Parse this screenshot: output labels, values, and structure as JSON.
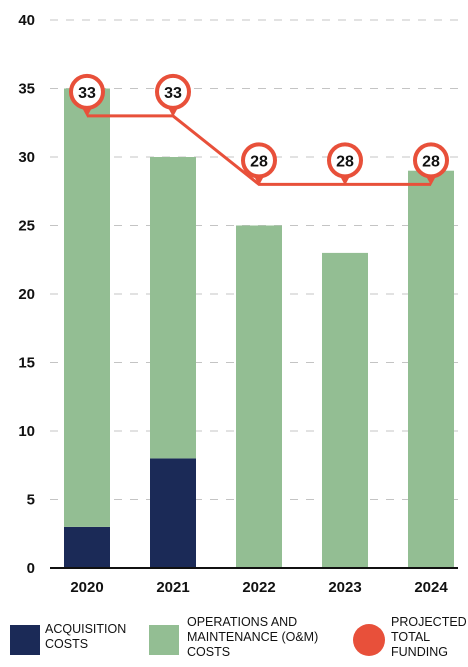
{
  "chart_data": {
    "type": "bar",
    "stacked": true,
    "categories": [
      "2020",
      "2021",
      "2022",
      "2023",
      "2024"
    ],
    "series": [
      {
        "name": "ACQUISITION COSTS",
        "values": [
          3,
          8,
          0,
          0,
          0
        ],
        "color": "#1b2a57"
      },
      {
        "name": "OPERATIONS AND MAINTENANCE (O&M) COSTS",
        "values": [
          32,
          22,
          25,
          23,
          29
        ],
        "color": "#93be93"
      },
      {
        "name": "PROJECTED TOTAL FUNDING",
        "type": "line",
        "values": [
          33,
          33,
          28,
          28,
          28
        ],
        "color": "#e8503a"
      }
    ],
    "ylim": [
      0,
      40
    ],
    "yticks": [
      0,
      5,
      10,
      15,
      20,
      25,
      30,
      35,
      40
    ],
    "grid": true,
    "legend_position": "bottom"
  },
  "legend": {
    "acq_line1": "ACQUISITION",
    "acq_line2": "COSTS",
    "om_line1": "OPERATIONS AND",
    "om_line2": "MAINTENANCE (O&M)",
    "om_line3": "COSTS",
    "fund_line1": "PROJECTED",
    "fund_line2": "TOTAL",
    "fund_line3": "FUNDING"
  }
}
